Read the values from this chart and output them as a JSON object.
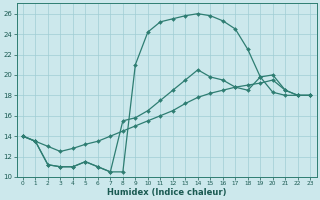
{
  "xlabel": "Humidex (Indice chaleur)",
  "bg_color": "#cce8ec",
  "grid_color": "#a0cdd4",
  "line_color": "#2e7d72",
  "xlim": [
    -0.5,
    23.5
  ],
  "ylim": [
    10,
    27
  ],
  "xticks": [
    0,
    1,
    2,
    3,
    4,
    5,
    6,
    7,
    8,
    9,
    10,
    11,
    12,
    13,
    14,
    15,
    16,
    17,
    18,
    19,
    20,
    21,
    22,
    23
  ],
  "yticks": [
    10,
    12,
    14,
    16,
    18,
    20,
    22,
    24,
    26
  ],
  "curve1_x": [
    0,
    1,
    2,
    3,
    4,
    5,
    6,
    7,
    8,
    9,
    10,
    11,
    12,
    13,
    14,
    15,
    16,
    17,
    18,
    19,
    20,
    21,
    22,
    23
  ],
  "curve1_y": [
    14.0,
    13.5,
    11.2,
    11.0,
    11.0,
    11.5,
    11.0,
    10.5,
    10.5,
    21.0,
    24.2,
    25.2,
    25.5,
    25.8,
    26.0,
    25.8,
    25.3,
    24.5,
    22.5,
    19.8,
    18.3,
    18.0,
    18.0,
    18.0
  ],
  "curve2_x": [
    0,
    1,
    2,
    3,
    4,
    5,
    6,
    7,
    8,
    9,
    10,
    11,
    12,
    13,
    14,
    15,
    16,
    17,
    18,
    19,
    20,
    21,
    22,
    23
  ],
  "curve2_y": [
    14.0,
    13.5,
    13.0,
    12.5,
    12.8,
    13.2,
    13.5,
    14.0,
    14.5,
    15.0,
    15.5,
    16.0,
    16.5,
    17.2,
    17.8,
    18.2,
    18.5,
    18.8,
    19.0,
    19.2,
    19.5,
    18.5,
    18.0,
    18.0
  ],
  "curve3_x": [
    0,
    1,
    2,
    3,
    4,
    5,
    6,
    7,
    8,
    9,
    10,
    11,
    12,
    13,
    14,
    15,
    16,
    17,
    18,
    19,
    20,
    21,
    22,
    23
  ],
  "curve3_y": [
    14.0,
    13.5,
    11.2,
    11.0,
    11.0,
    11.5,
    11.0,
    10.5,
    15.5,
    15.8,
    16.5,
    17.5,
    18.5,
    19.5,
    20.5,
    19.8,
    19.5,
    18.8,
    18.5,
    19.8,
    20.0,
    18.5,
    18.0,
    18.0
  ]
}
